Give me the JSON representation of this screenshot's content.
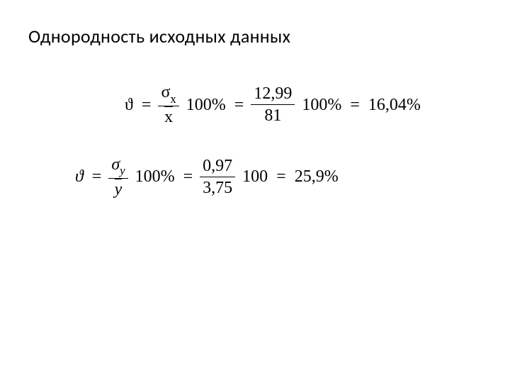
{
  "title": "Однородность исходных данных",
  "eq1": {
    "theta": "ϑ",
    "eq": "=",
    "frac1_num_sigma": "σ",
    "frac1_num_sub": "x",
    "frac1_den_var": "x",
    "mult1": "100%",
    "frac2_num": "12,99",
    "frac2_den": "81",
    "mult2": "100%",
    "result": "16,04%"
  },
  "eq2": {
    "theta": "ϑ",
    "eq": "=",
    "frac1_num_sigma": "σ",
    "frac1_num_sub": "y",
    "frac1_den_var": "y",
    "mult1": "100%",
    "frac2_num": "0,97",
    "frac2_den": "3,75",
    "mult2": "100",
    "result": "25,9%"
  },
  "style": {
    "background_color": "#ffffff",
    "text_color": "#000000",
    "title_fontsize": 26,
    "formula_fontsize": 24,
    "font_family_title": "Calibri",
    "font_family_math": "Cambria Math"
  }
}
